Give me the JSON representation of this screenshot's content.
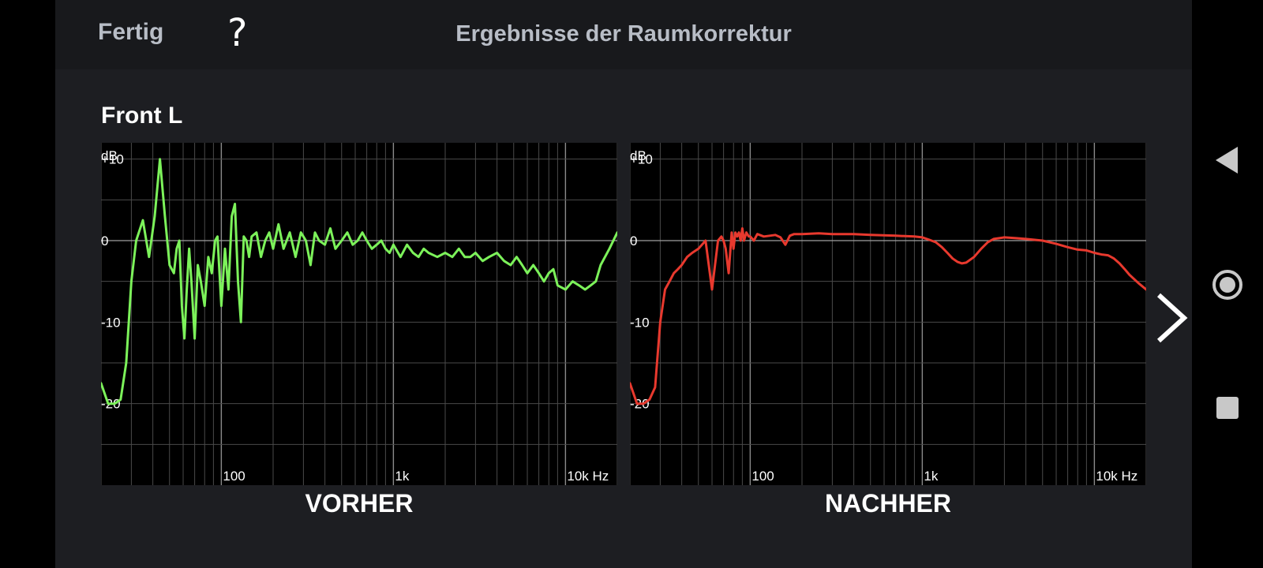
{
  "header": {
    "done_label": "Fertig",
    "help_label": "?",
    "title": "Ergebnisse der Raumkorrektur"
  },
  "channel_label": "Front L",
  "chart_data": [
    {
      "type": "line",
      "caption": "VORHER",
      "ylabel": "dB",
      "x_scale": "log",
      "xlim": [
        20,
        20000
      ],
      "ylim": [
        -30,
        12
      ],
      "x_ticks": [
        {
          "v": 100,
          "label": "100"
        },
        {
          "v": 1000,
          "label": "1k"
        },
        {
          "v": 10000,
          "label": "10k Hz"
        }
      ],
      "y_ticks": [
        {
          "v": 10,
          "label": "+10"
        },
        {
          "v": 0,
          "label": "0"
        },
        {
          "v": -10,
          "label": "-10"
        },
        {
          "v": -20,
          "label": "-20"
        }
      ],
      "grid": true,
      "color": "#7cf25a",
      "series": [
        {
          "x": [
            20,
            22,
            24,
            26,
            28,
            30,
            32,
            35,
            38,
            41,
            44,
            47,
            50,
            53,
            55,
            57,
            59,
            61,
            63,
            65,
            67,
            70,
            73,
            76,
            80,
            84,
            88,
            92,
            95,
            100,
            105,
            110,
            115,
            120,
            125,
            130,
            135,
            140,
            145,
            150,
            160,
            170,
            180,
            190,
            200,
            215,
            230,
            250,
            270,
            290,
            310,
            330,
            350,
            370,
            400,
            430,
            460,
            500,
            540,
            580,
            620,
            660,
            700,
            750,
            800,
            850,
            900,
            950,
            1000,
            1100,
            1200,
            1300,
            1400,
            1500,
            1600,
            1800,
            2000,
            2200,
            2400,
            2600,
            2800,
            3000,
            3300,
            3600,
            4000,
            4400,
            4800,
            5200,
            5600,
            6000,
            6500,
            7000,
            7500,
            8000,
            8500,
            9000,
            10000,
            11000,
            12000,
            13000,
            14000,
            15000,
            16000,
            18000,
            20000
          ],
          "y": [
            -17.5,
            -20,
            -20,
            -19.5,
            -15,
            -5,
            0,
            2.5,
            -2,
            3,
            10,
            3,
            -3,
            -4,
            -1,
            0,
            -8,
            -12,
            -6,
            -1,
            -5,
            -12,
            -3,
            -5,
            -8,
            -2,
            -4,
            0,
            0.5,
            -8,
            -1,
            -6,
            3,
            4.5,
            -5,
            -10,
            0.5,
            0,
            -2,
            0.5,
            1,
            -2,
            0,
            1,
            -1,
            2,
            -1,
            1,
            -2,
            1,
            0,
            -3,
            1,
            0,
            -0.5,
            1.5,
            -1,
            0,
            1,
            -0.5,
            0,
            1,
            0,
            -1,
            -0.5,
            0,
            -1,
            -1.5,
            -0.5,
            -2,
            -0.5,
            -1.5,
            -2,
            -1,
            -1.5,
            -2,
            -1.5,
            -2,
            -1,
            -2,
            -2,
            -1.5,
            -2.5,
            -2,
            -1.5,
            -2.5,
            -3,
            -2,
            -3,
            -4,
            -3,
            -4,
            -5,
            -4,
            -3.5,
            -5.5,
            -6,
            -5,
            -5.5,
            -6,
            -5.5,
            -5,
            -3,
            -1,
            1
          ]
        }
      ]
    },
    {
      "type": "line",
      "caption": "NACHHER",
      "ylabel": "dB",
      "x_scale": "log",
      "xlim": [
        20,
        20000
      ],
      "ylim": [
        -30,
        12
      ],
      "x_ticks": [
        {
          "v": 100,
          "label": "100"
        },
        {
          "v": 1000,
          "label": "1k"
        },
        {
          "v": 10000,
          "label": "10k Hz"
        }
      ],
      "y_ticks": [
        {
          "v": 10,
          "label": "+10"
        },
        {
          "v": 0,
          "label": "0"
        },
        {
          "v": -10,
          "label": "-10"
        },
        {
          "v": -20,
          "label": "-20"
        }
      ],
      "grid": true,
      "color": "#e8392e",
      "series": [
        {
          "x": [
            20,
            22,
            24,
            26,
            28,
            30,
            32,
            34,
            36,
            38,
            40,
            43,
            46,
            50,
            55,
            60,
            65,
            68,
            70,
            72,
            75,
            78,
            80,
            82,
            84,
            86,
            88,
            90,
            92,
            95,
            98,
            100,
            105,
            110,
            120,
            130,
            140,
            150,
            160,
            170,
            180,
            200,
            250,
            300,
            400,
            500,
            700,
            900,
            1000,
            1100,
            1200,
            1300,
            1400,
            1500,
            1600,
            1700,
            1800,
            2000,
            2200,
            2400,
            2600,
            2800,
            3000,
            3500,
            4000,
            5000,
            6000,
            7000,
            8000,
            9000,
            10000,
            11000,
            12000,
            13000,
            14000,
            15000,
            16000,
            18000,
            20000
          ],
          "y": [
            -17.5,
            -20,
            -20,
            -19.5,
            -18,
            -10,
            -6,
            -5,
            -4,
            -3.5,
            -3,
            -2,
            -1.5,
            -1,
            0,
            -6,
            0,
            0.5,
            0,
            -1,
            -4,
            1,
            -1,
            1,
            0.5,
            1,
            0,
            1.5,
            0,
            1,
            0.5,
            0.5,
            0,
            0.8,
            0.5,
            0.6,
            0.7,
            0.4,
            -0.5,
            0.6,
            0.8,
            0.8,
            0.9,
            0.8,
            0.8,
            0.7,
            0.6,
            0.5,
            0.4,
            0.1,
            -0.2,
            -0.8,
            -1.5,
            -2.2,
            -2.6,
            -2.8,
            -2.7,
            -2,
            -1,
            -0.2,
            0.2,
            0.3,
            0.4,
            0.3,
            0.2,
            0,
            -0.4,
            -0.8,
            -1.1,
            -1.2,
            -1.5,
            -1.7,
            -1.8,
            -2.2,
            -2.8,
            -3.5,
            -4.2,
            -5.2,
            -6
          ]
        }
      ]
    }
  ],
  "icons": {
    "next": "chevron-right-icon",
    "back": "triangle-back-icon",
    "home": "circle-home-icon",
    "recents": "square-recents-icon"
  },
  "colors": {
    "background": "#1d1e22",
    "topbar": "#18191c",
    "header_text": "#b8bdc6",
    "grid": "#4a4a4a"
  }
}
